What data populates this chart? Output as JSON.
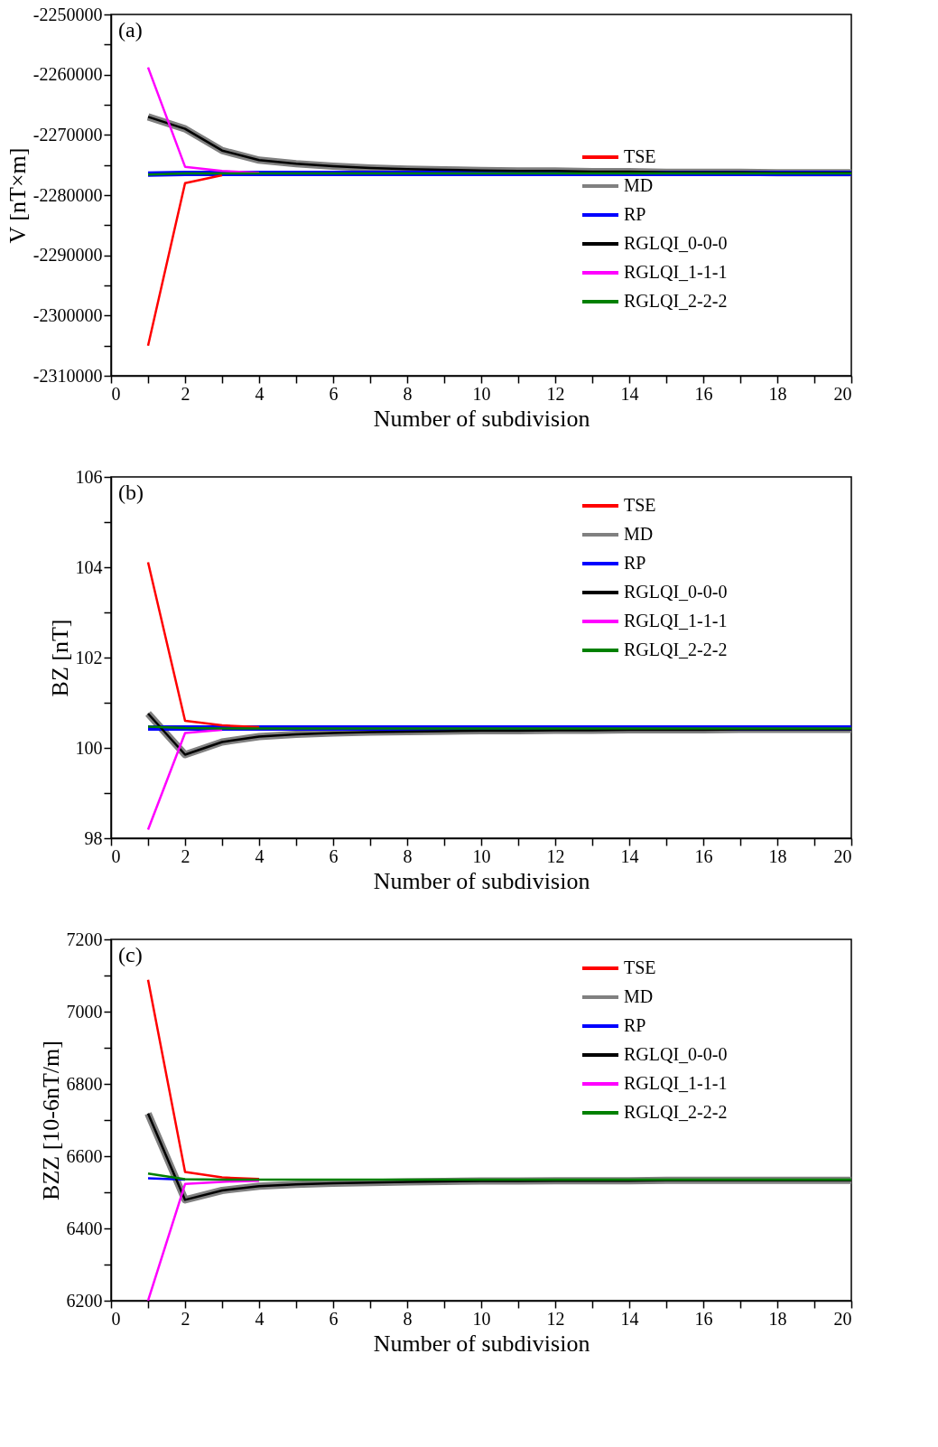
{
  "chart_data": [
    {
      "type": "line",
      "annotations": [
        "(a)"
      ],
      "xlabel": "Number of subdivision",
      "ylabel": "V [nT×m]",
      "legend": "right",
      "grid": false,
      "marker": "none",
      "line_style": "solid",
      "xlim": [
        0,
        20
      ],
      "xticks": [
        0,
        {
          "value": 1,
          "label": null
        },
        2,
        {
          "value": 3,
          "label": null
        },
        4,
        {
          "value": 5,
          "label": null
        },
        6,
        {
          "value": 7,
          "label": null
        },
        8,
        {
          "value": 9,
          "label": null
        },
        10,
        {
          "value": 11,
          "label": null
        },
        12,
        {
          "value": 13,
          "label": null
        },
        14,
        {
          "value": 15,
          "label": null
        },
        16,
        {
          "value": 17,
          "label": null
        },
        18,
        {
          "value": 19,
          "label": null
        },
        20
      ],
      "ylim": [
        -2310000,
        -2250000
      ],
      "yticks": [
        -2310000,
        {
          "value": -2305000,
          "label": null
        },
        -2300000,
        {
          "value": -2295000,
          "label": null
        },
        -2290000,
        {
          "value": -2285000,
          "label": null
        },
        -2280000,
        {
          "value": -2275000,
          "label": null
        },
        -2270000,
        {
          "value": -2265000,
          "label": null
        },
        -2260000,
        {
          "value": -2255000,
          "label": null
        },
        -2250000
      ],
      "x": [
        1,
        2,
        3,
        4,
        5,
        6,
        7,
        8,
        9,
        10,
        11,
        12,
        13,
        14,
        15,
        16,
        17,
        18,
        19,
        20
      ],
      "series": [
        {
          "name": "TSE",
          "color": "#ff0000",
          "values": [
            -2305000,
            -2278000,
            -2276700,
            null,
            null,
            null,
            null,
            null,
            null,
            null,
            null,
            null,
            null,
            null,
            null,
            null,
            null,
            null,
            null,
            null
          ]
        },
        {
          "name": "MD",
          "color": "#808080",
          "values": [
            -2267000,
            -2269000,
            -2272600,
            -2274200,
            -2274800,
            -2275200,
            -2275500,
            -2275700,
            -2275800,
            -2275900,
            -2276000,
            -2276000,
            -2276100,
            -2276100,
            -2276200,
            -2276200,
            -2276200,
            -2276300,
            -2276300,
            -2276300
          ]
        },
        {
          "name": "RP",
          "color": "#0000ff",
          "values": [
            -2276500,
            -2276400,
            -2276400,
            -2276400,
            -2276400,
            -2276400,
            -2276400,
            -2276400,
            -2276400,
            -2276400,
            -2276400,
            -2276400,
            -2276400,
            -2276400,
            -2276400,
            -2276400,
            -2276400,
            -2276400,
            -2276400,
            -2276400
          ]
        },
        {
          "name": "RGLQI_0-0-0",
          "color": "#000000",
          "values": [
            -2267000,
            -2269000,
            -2272600,
            -2274200,
            -2274800,
            -2275200,
            -2275500,
            -2275700,
            -2275800,
            -2275900,
            -2276000,
            -2276000,
            -2276100,
            -2276100,
            -2276200,
            -2276200,
            -2276200,
            -2276300,
            -2276300,
            -2276300
          ]
        },
        {
          "name": "RGLQI_1-1-1",
          "color": "#ff00ff",
          "values": [
            -2258800,
            -2275300,
            -2276000,
            -2276300,
            null,
            null,
            null,
            null,
            null,
            null,
            null,
            null,
            null,
            null,
            null,
            null,
            null,
            null,
            null,
            null
          ]
        },
        {
          "name": "RGLQI_2-2-2",
          "color": "#008000",
          "values": [
            -2276600,
            -2276400,
            -2276400,
            -2276400,
            -2276400,
            -2276400,
            -2276400,
            -2276400,
            -2276400,
            -2276400,
            -2276400,
            -2276400,
            -2276400,
            -2276400,
            -2276400,
            -2276400,
            -2276400,
            -2276400,
            -2276400,
            -2276400
          ]
        }
      ]
    },
    {
      "type": "line",
      "annotations": [
        "(b)"
      ],
      "xlabel": "Number of subdivision",
      "ylabel": "BZ [nT]",
      "legend": "top right",
      "grid": false,
      "marker": "none",
      "line_style": "solid",
      "xlim": [
        0,
        20
      ],
      "xticks": [
        0,
        {
          "value": 1,
          "label": null
        },
        2,
        {
          "value": 3,
          "label": null
        },
        4,
        {
          "value": 5,
          "label": null
        },
        6,
        {
          "value": 7,
          "label": null
        },
        8,
        {
          "value": 9,
          "label": null
        },
        10,
        {
          "value": 11,
          "label": null
        },
        12,
        {
          "value": 13,
          "label": null
        },
        14,
        {
          "value": 15,
          "label": null
        },
        16,
        {
          "value": 17,
          "label": null
        },
        18,
        {
          "value": 19,
          "label": null
        },
        20
      ],
      "ylim": [
        98,
        106
      ],
      "yticks": [
        98,
        {
          "value": 99,
          "label": null
        },
        100,
        {
          "value": 101,
          "label": null
        },
        102,
        {
          "value": 103,
          "label": null
        },
        104,
        {
          "value": 105,
          "label": null
        },
        106
      ],
      "x": [
        1,
        2,
        3,
        4,
        5,
        6,
        7,
        8,
        9,
        10,
        11,
        12,
        13,
        14,
        15,
        16,
        17,
        18,
        19,
        20
      ],
      "series": [
        {
          "name": "TSE",
          "color": "#ff0000",
          "values": [
            104.11,
            100.6,
            100.5,
            100.46,
            null,
            null,
            null,
            null,
            null,
            null,
            null,
            null,
            null,
            null,
            null,
            null,
            null,
            null,
            null,
            null
          ]
        },
        {
          "name": "MD",
          "color": "#808080",
          "values": [
            100.76,
            99.85,
            100.13,
            100.25,
            100.3,
            100.33,
            100.35,
            100.36,
            100.37,
            100.38,
            100.38,
            100.39,
            100.39,
            100.4,
            100.4,
            100.4,
            100.41,
            100.41,
            100.41,
            100.41
          ]
        },
        {
          "name": "RP",
          "color": "#0000ff",
          "values": [
            100.44,
            100.44,
            100.44,
            100.44,
            100.44,
            100.44,
            100.44,
            100.44,
            100.44,
            100.44,
            100.44,
            100.44,
            100.44,
            100.44,
            100.44,
            100.44,
            100.44,
            100.44,
            100.44,
            100.44
          ]
        },
        {
          "name": "RGLQI_0-0-0",
          "color": "#000000",
          "values": [
            100.76,
            99.85,
            100.13,
            100.25,
            100.3,
            100.33,
            100.35,
            100.36,
            100.37,
            100.38,
            100.38,
            100.39,
            100.39,
            100.4,
            100.4,
            100.4,
            100.41,
            100.41,
            100.41,
            100.41
          ]
        },
        {
          "name": "RGLQI_1-1-1",
          "color": "#ff00ff",
          "values": [
            98.19,
            100.33,
            100.4,
            null,
            null,
            null,
            null,
            null,
            null,
            null,
            null,
            null,
            null,
            null,
            null,
            null,
            null,
            null,
            null,
            null
          ]
        },
        {
          "name": "RGLQI_2-2-2",
          "color": "#008000",
          "values": [
            100.47,
            100.44,
            100.43,
            100.43,
            100.43,
            100.43,
            100.43,
            100.43,
            100.43,
            100.43,
            100.43,
            100.43,
            100.43,
            100.43,
            100.43,
            100.43,
            100.43,
            100.43,
            100.43,
            100.43
          ]
        }
      ]
    },
    {
      "type": "line",
      "annotations": [
        "(c)"
      ],
      "xlabel": "Number of subdivision",
      "ylabel": "BZZ [10-6nT/m]",
      "legend": "top right",
      "grid": false,
      "marker": "none",
      "line_style": "solid",
      "xlim": [
        0,
        20
      ],
      "xticks": [
        0,
        {
          "value": 1,
          "label": null
        },
        2,
        {
          "value": 3,
          "label": null
        },
        4,
        {
          "value": 5,
          "label": null
        },
        6,
        {
          "value": 7,
          "label": null
        },
        8,
        {
          "value": 9,
          "label": null
        },
        10,
        {
          "value": 11,
          "label": null
        },
        12,
        {
          "value": 13,
          "label": null
        },
        14,
        {
          "value": 15,
          "label": null
        },
        16,
        {
          "value": 17,
          "label": null
        },
        18,
        {
          "value": 19,
          "label": null
        },
        20
      ],
      "ylim": [
        6200,
        7200
      ],
      "yticks": [
        6200,
        {
          "value": 6300,
          "label": null
        },
        6400,
        {
          "value": 6500,
          "label": null
        },
        6600,
        {
          "value": 6700,
          "label": null
        },
        6800,
        {
          "value": 6900,
          "label": null
        },
        7000,
        {
          "value": 7100,
          "label": null
        },
        7200
      ],
      "x": [
        1,
        2,
        3,
        4,
        5,
        6,
        7,
        8,
        9,
        10,
        11,
        12,
        13,
        14,
        15,
        16,
        17,
        18,
        19,
        20
      ],
      "series": [
        {
          "name": "TSE",
          "color": "#ff0000",
          "values": [
            7088,
            6556,
            6541,
            6537,
            null,
            null,
            null,
            null,
            null,
            null,
            null,
            null,
            null,
            null,
            null,
            null,
            null,
            null,
            null,
            null
          ]
        },
        {
          "name": "MD",
          "color": "#808080",
          "values": [
            6718,
            6479,
            6505,
            6517,
            6522,
            6525,
            6527,
            6529,
            6530,
            6531,
            6531,
            6532,
            6532,
            6532,
            6533,
            6533,
            6533,
            6533,
            6533,
            6533
          ]
        },
        {
          "name": "RP",
          "color": "#0000ff",
          "values": [
            6539,
            6535,
            null,
            null,
            null,
            null,
            null,
            null,
            null,
            null,
            null,
            null,
            null,
            null,
            null,
            null,
            null,
            null,
            null,
            null
          ]
        },
        {
          "name": "RGLQI_0-0-0",
          "color": "#000000",
          "values": [
            6718,
            6479,
            6505,
            6517,
            6522,
            6525,
            6527,
            6529,
            6530,
            6531,
            6531,
            6532,
            6532,
            6532,
            6533,
            6533,
            6533,
            6533,
            6533,
            6533
          ]
        },
        {
          "name": "RGLQI_1-1-1",
          "color": "#ff00ff",
          "values": [
            6200,
            6523,
            6529,
            6532,
            null,
            null,
            null,
            null,
            null,
            null,
            null,
            null,
            null,
            null,
            null,
            null,
            null,
            null,
            null,
            null
          ]
        },
        {
          "name": "RGLQI_2-2-2",
          "color": "#008000",
          "values": [
            6552,
            6536,
            6535,
            6535,
            6535,
            6535,
            6535,
            6535,
            6535,
            6535,
            6535,
            6535,
            6535,
            6535,
            6535,
            6535,
            6535,
            6535,
            6535,
            6535
          ]
        }
      ]
    }
  ]
}
